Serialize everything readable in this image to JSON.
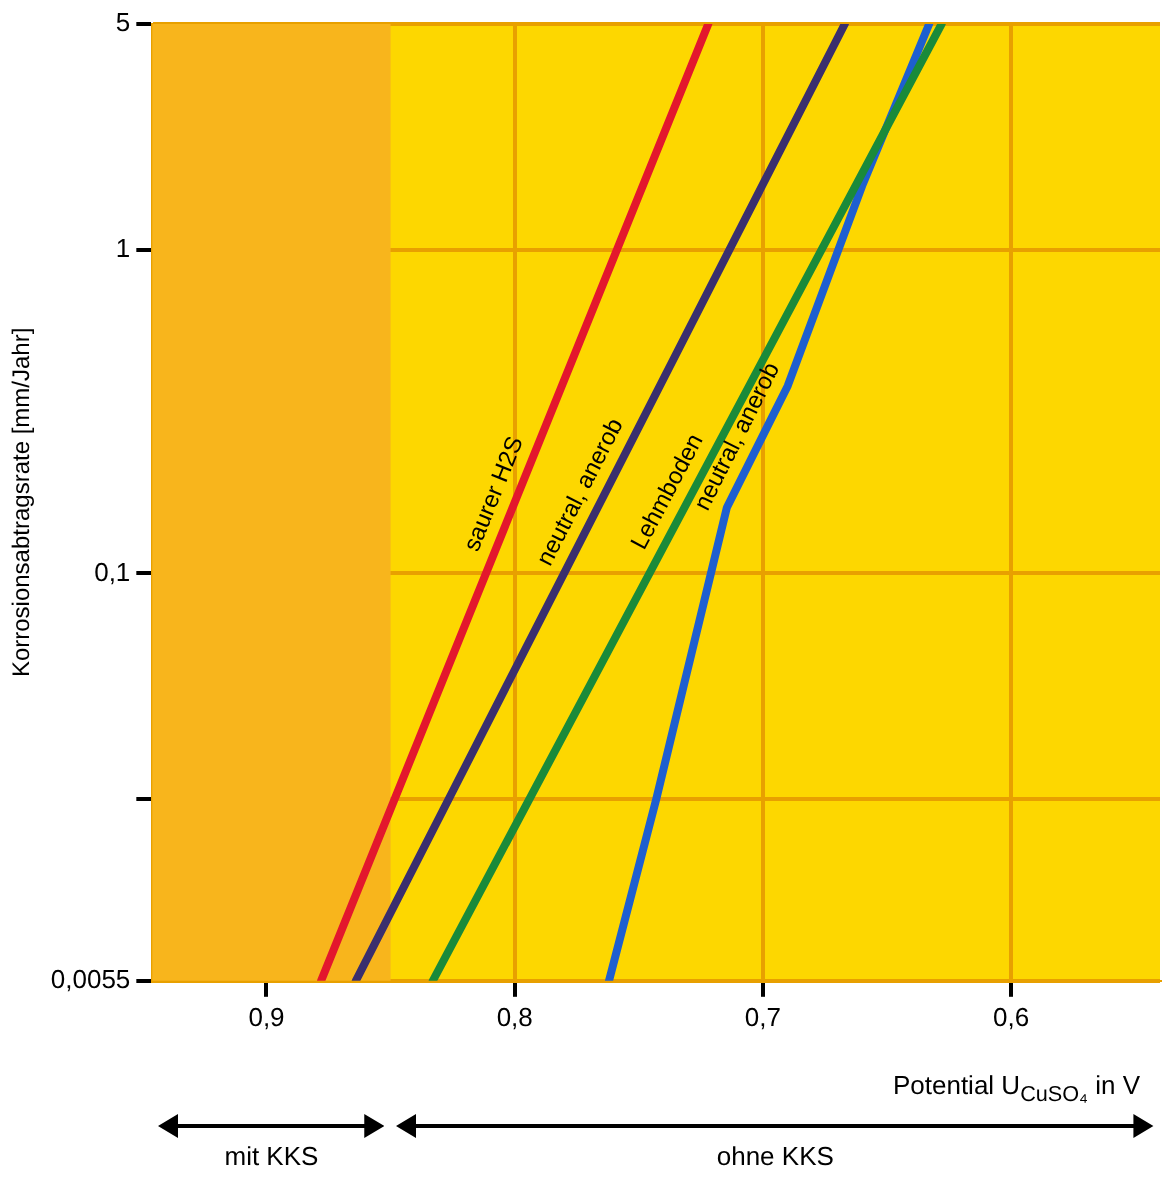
{
  "chart_data": {
    "type": "line",
    "ylabel": "Korrosionsabtragsrate [mm/Jahr]",
    "xlabel": "Potential U$_{CuSO₄}$ in V",
    "log": "y",
    "grid": true,
    "legend": false,
    "marker": "none",
    "line_style": "solid",
    "xlim": [
      0.946,
      0.54
    ],
    "xticks": [
      {
        "value": 0.9,
        "label": "0,9"
      },
      {
        "value": 0.8,
        "label": "0,8"
      },
      {
        "value": 0.7,
        "label": "0,7"
      },
      {
        "value": 0.6,
        "label": "0,6"
      }
    ],
    "ylim": [
      0.0055,
      5
    ],
    "yticks": [
      {
        "value": 0.0055,
        "label": "0,0055"
      },
      {
        "value": 0.02,
        "label": null
      },
      {
        "value": 0.1,
        "label": "0,1"
      },
      1,
      5
    ],
    "bands": [
      {
        "axis": "x",
        "from": 0.946,
        "to": 0.85,
        "color": "#f8b51c"
      }
    ],
    "annotations": [
      "mit KKS",
      "ohne KKS"
    ],
    "series": [
      {
        "name": "saurer H2S",
        "color": "#e3172d",
        "x": [
          0.878,
          0.722
        ],
        "values": [
          0.0055,
          5
        ]
      },
      {
        "name": "neutral, anerob",
        "color": "#3a2f6e",
        "x": [
          0.864,
          0.667
        ],
        "values": [
          0.0055,
          5
        ]
      },
      {
        "name": "Lehmboden",
        "color": "#1a8a3a",
        "x": [
          0.833,
          0.628
        ],
        "values": [
          0.0055,
          5
        ]
      },
      {
        "name": "neutral, anerob",
        "color": "#1e5fd0",
        "x": [
          0.762,
          0.743,
          0.7145,
          0.69,
          0.66,
          0.633
        ],
        "values": [
          0.0055,
          0.02,
          0.16,
          0.38,
          1.58,
          5
        ]
      }
    ]
  }
}
